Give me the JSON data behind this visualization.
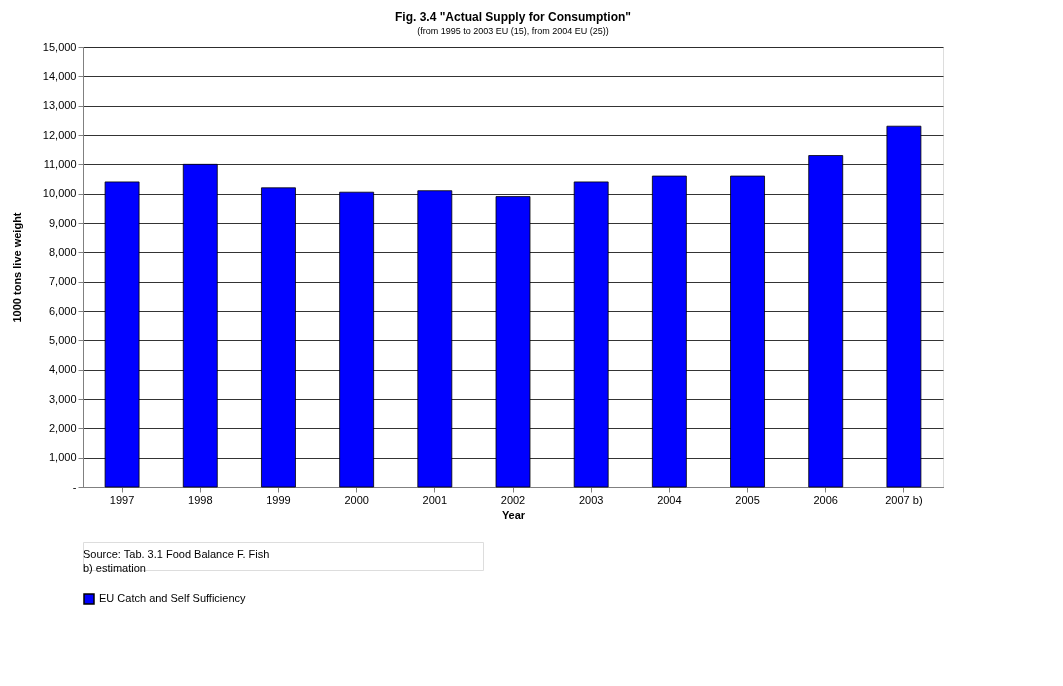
{
  "chart_data": {
    "type": "bar",
    "title": "Fig. 3.4 \"Actual Supply for Consumption\"",
    "subtitle": "(from 1995 to 2003 EU (15), from 2004 EU (25))",
    "xlabel": "Year",
    "ylabel": "1000  tons  live weight",
    "categories": [
      "1997",
      "1998",
      "1999",
      "2000",
      "2001",
      "2002",
      "2003",
      "2004",
      "2005",
      "2006",
      "2007 b)"
    ],
    "series": [
      {
        "name": "EU Catch and Self Sufficiency",
        "color": "#0000ff",
        "values": [
          10400,
          11000,
          10200,
          10050,
          10100,
          9900,
          10400,
          10600,
          10600,
          11300,
          12300
        ]
      }
    ],
    "ylim": [
      0,
      15000
    ],
    "yticks": [
      {
        "value": 0,
        "label": "-"
      },
      {
        "value": 1000,
        "label": "1,000"
      },
      {
        "value": 2000,
        "label": "2,000"
      },
      {
        "value": 3000,
        "label": "3,000"
      },
      {
        "value": 4000,
        "label": "4,000"
      },
      {
        "value": 5000,
        "label": "5,000"
      },
      {
        "value": 6000,
        "label": "6,000"
      },
      {
        "value": 7000,
        "label": "7,000"
      },
      {
        "value": 8000,
        "label": "8,000"
      },
      {
        "value": 9000,
        "label": "9,000"
      },
      {
        "value": 10000,
        "label": "10,000"
      },
      {
        "value": 11000,
        "label": "11,000"
      },
      {
        "value": 12000,
        "label": "12,000"
      },
      {
        "value": 13000,
        "label": "13,000"
      },
      {
        "value": 14000,
        "label": "14,000"
      },
      {
        "value": 15000,
        "label": "15,000"
      }
    ],
    "grid": "y",
    "legend": "bottom",
    "annotations": [
      "Source: Tab. 3.1 Food Balance F. Fish",
      "b) estimation"
    ]
  }
}
